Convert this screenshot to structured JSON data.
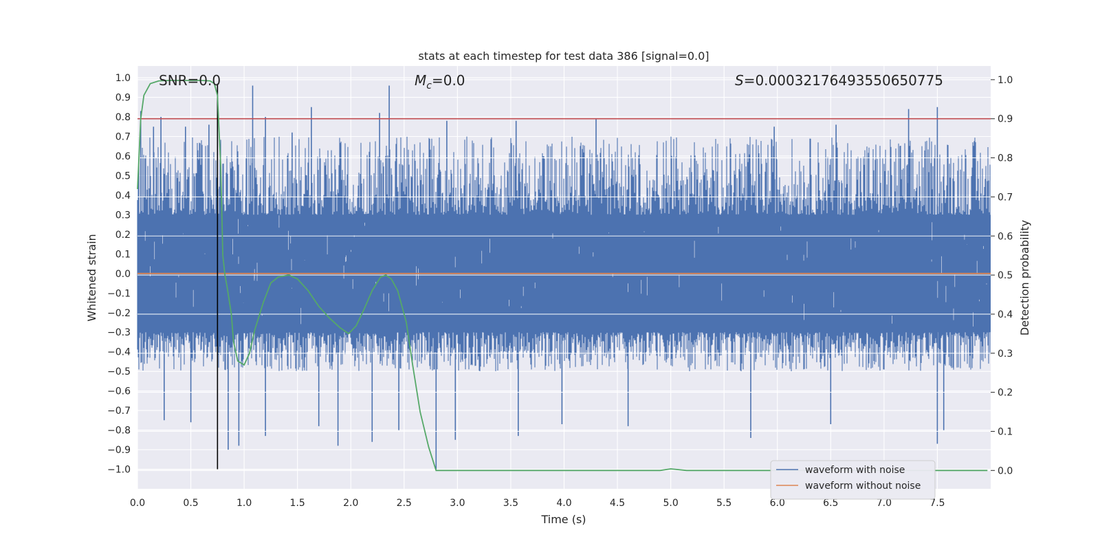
{
  "chart_data": {
    "type": "line",
    "title": "stats at each timestep for test data 386 [signal=0.0]",
    "xlabel": "Time (s)",
    "ylabel_left": "Whitened strain",
    "ylabel_right": "Detection probability",
    "xlim": [
      0.0,
      8.0
    ],
    "ylim_left": [
      -1.1,
      1.06
    ],
    "ylim_right": [
      -0.047,
      1.035
    ],
    "x_ticks": [
      "0.0",
      "0.5",
      "1.0",
      "1.5",
      "2.0",
      "2.5",
      "3.0",
      "3.5",
      "4.0",
      "4.5",
      "5.0",
      "5.5",
      "6.0",
      "6.5",
      "7.0",
      "7.5"
    ],
    "x_tick_values": [
      0.0,
      0.5,
      1.0,
      1.5,
      2.0,
      2.5,
      3.0,
      3.5,
      4.0,
      4.5,
      5.0,
      5.5,
      6.0,
      6.5,
      7.0,
      7.5
    ],
    "y_left_ticks": [
      "1.0",
      "0.9",
      "0.8",
      "0.7",
      "0.6",
      "0.5",
      "0.4",
      "0.3",
      "0.2",
      "0.1",
      "0.0",
      "−0.1",
      "−0.2",
      "−0.3",
      "−0.4",
      "−0.5",
      "−0.6",
      "−0.7",
      "−0.8",
      "−0.9",
      "−1.0"
    ],
    "y_left_tick_values": [
      1.0,
      0.9,
      0.8,
      0.7,
      0.6,
      0.5,
      0.4,
      0.3,
      0.2,
      0.1,
      0.0,
      -0.1,
      -0.2,
      -0.3,
      -0.4,
      -0.5,
      -0.6,
      -0.7,
      -0.8,
      -0.9,
      -1.0
    ],
    "y_right_ticks": [
      "1.0",
      "0.9",
      "0.8",
      "0.7",
      "0.6",
      "0.5",
      "0.4",
      "0.3",
      "0.2",
      "0.1",
      "0.0"
    ],
    "y_right_tick_values": [
      1.0,
      0.9,
      0.8,
      0.7,
      0.6,
      0.5,
      0.4,
      0.3,
      0.2,
      0.1,
      0.0
    ],
    "annotations": {
      "snr": "SNR=0.0",
      "mc_symbol": "M",
      "mc_sub": "c",
      "mc_value": "=0.0",
      "s_symbol": "S",
      "s_value": "=0.00032176493550650775"
    },
    "threshold": {
      "value": 0.9,
      "axis": "right",
      "color": "#c44e52"
    },
    "marker_line": {
      "x": 0.75,
      "y_from": -1.0,
      "y_to": 0.97,
      "color": "#000000"
    },
    "series": [
      {
        "name": "waveform with noise",
        "axis": "left",
        "color": "#4c72b0",
        "description_type": "dense noise",
        "envelope_upper": 0.6,
        "envelope_lower": -0.6,
        "core_half_width": 0.3,
        "spike_upper_examples": [
          [
            0.03,
            0.83
          ],
          [
            0.15,
            0.75
          ],
          [
            0.22,
            0.8
          ],
          [
            0.45,
            0.75
          ],
          [
            0.67,
            0.76
          ],
          [
            1.08,
            0.96
          ],
          [
            1.2,
            0.8
          ],
          [
            1.45,
            0.72
          ],
          [
            1.63,
            0.85
          ],
          [
            2.27,
            0.82
          ],
          [
            2.36,
            0.96
          ],
          [
            2.9,
            0.78
          ],
          [
            3.55,
            0.78
          ],
          [
            4.3,
            0.79
          ],
          [
            5.97,
            0.75
          ],
          [
            6.55,
            0.76
          ],
          [
            7.23,
            0.84
          ],
          [
            7.5,
            0.85
          ]
        ],
        "spike_lower_examples": [
          [
            0.25,
            -0.75
          ],
          [
            0.5,
            -0.76
          ],
          [
            0.85,
            -0.9
          ],
          [
            0.95,
            -0.88
          ],
          [
            1.2,
            -0.83
          ],
          [
            1.7,
            -0.78
          ],
          [
            1.88,
            -0.88
          ],
          [
            2.2,
            -0.86
          ],
          [
            2.45,
            -0.8
          ],
          [
            2.8,
            -1.0
          ],
          [
            2.98,
            -0.85
          ],
          [
            3.57,
            -0.83
          ],
          [
            3.98,
            -0.77
          ],
          [
            4.6,
            -0.78
          ],
          [
            5.75,
            -0.84
          ],
          [
            6.5,
            -0.77
          ],
          [
            7.5,
            -0.87
          ],
          [
            7.56,
            -0.8
          ]
        ]
      },
      {
        "name": "waveform without noise",
        "axis": "left",
        "color": "#dd8452",
        "x": [
          0.0,
          8.0
        ],
        "y": [
          0.0,
          0.0
        ]
      },
      {
        "name": "",
        "axis": "right",
        "color": "#55a868",
        "x": [
          0.0,
          0.03,
          0.06,
          0.12,
          0.2,
          0.3,
          0.45,
          0.6,
          0.68,
          0.72,
          0.75,
          0.78,
          0.8,
          0.82,
          0.84,
          0.88,
          0.9,
          0.94,
          1.0,
          1.05,
          1.1,
          1.18,
          1.25,
          1.32,
          1.42,
          1.5,
          1.6,
          1.7,
          1.8,
          1.9,
          1.98,
          2.05,
          2.12,
          2.2,
          2.28,
          2.33,
          2.38,
          2.44,
          2.52,
          2.58,
          2.65,
          2.73,
          2.8,
          3.0,
          3.5,
          4.0,
          4.5,
          4.9,
          5.0,
          5.15,
          5.5,
          6.0,
          6.5,
          7.0,
          7.5,
          7.97
        ],
        "y": [
          0.72,
          0.9,
          0.96,
          0.99,
          0.997,
          0.998,
          0.998,
          0.998,
          0.997,
          0.99,
          0.96,
          0.78,
          0.55,
          0.5,
          0.47,
          0.4,
          0.33,
          0.28,
          0.27,
          0.3,
          0.36,
          0.43,
          0.48,
          0.495,
          0.5,
          0.49,
          0.46,
          0.42,
          0.39,
          0.365,
          0.35,
          0.37,
          0.41,
          0.46,
          0.495,
          0.5,
          0.49,
          0.46,
          0.38,
          0.27,
          0.15,
          0.06,
          0.0,
          0.0,
          0.0,
          0.0,
          0.0,
          0.0,
          0.004,
          0.0,
          0.0,
          0.0,
          0.0,
          0.0,
          0.0,
          0.0
        ]
      }
    ],
    "legend": {
      "position": "lower-right",
      "entries": [
        "waveform with noise",
        "waveform without noise"
      ]
    },
    "grid": true,
    "background": "#eaeaf2"
  }
}
